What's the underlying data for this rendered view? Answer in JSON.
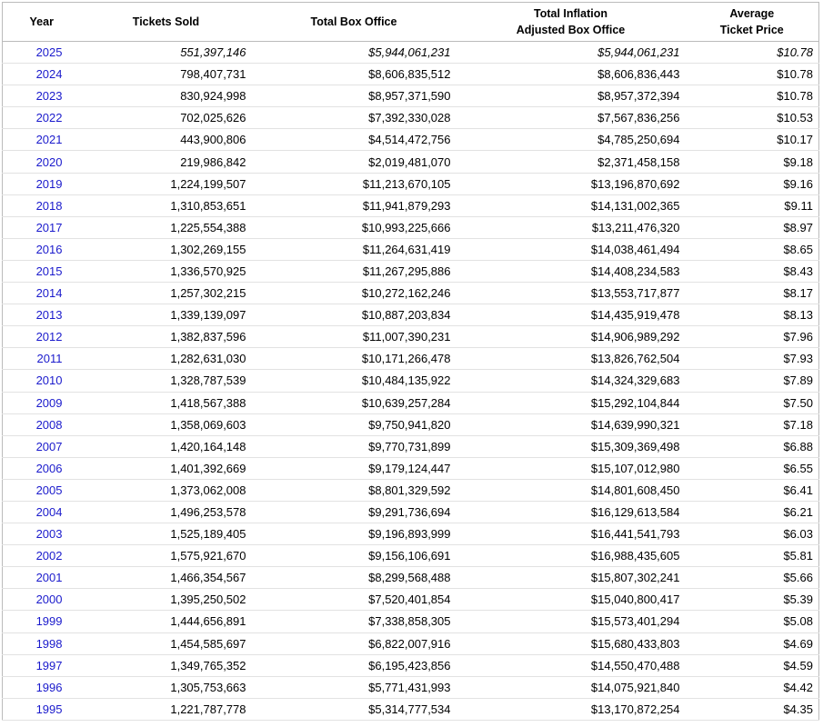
{
  "table": {
    "header": [
      "Year",
      "Tickets Sold",
      "Total Box Office",
      [
        "Total Inflation",
        "Adjusted Box Office"
      ],
      [
        "Average",
        "Ticket Price"
      ]
    ],
    "rows": [
      [
        "2025",
        "551,397,146",
        "$5,944,061,231",
        "$5,944,061,231",
        "$10.78"
      ],
      [
        "2024",
        "798,407,731",
        "$8,606,835,512",
        "$8,606,836,443",
        "$10.78"
      ],
      [
        "2023",
        "830,924,998",
        "$8,957,371,590",
        "$8,957,372,394",
        "$10.78"
      ],
      [
        "2022",
        "702,025,626",
        "$7,392,330,028",
        "$7,567,836,256",
        "$10.53"
      ],
      [
        "2021",
        "443,900,806",
        "$4,514,472,756",
        "$4,785,250,694",
        "$10.17"
      ],
      [
        "2020",
        "219,986,842",
        "$2,019,481,070",
        "$2,371,458,158",
        "$9.18"
      ],
      [
        "2019",
        "1,224,199,507",
        "$11,213,670,105",
        "$13,196,870,692",
        "$9.16"
      ],
      [
        "2018",
        "1,310,853,651",
        "$11,941,879,293",
        "$14,131,002,365",
        "$9.11"
      ],
      [
        "2017",
        "1,225,554,388",
        "$10,993,225,666",
        "$13,211,476,320",
        "$8.97"
      ],
      [
        "2016",
        "1,302,269,155",
        "$11,264,631,419",
        "$14,038,461,494",
        "$8.65"
      ],
      [
        "2015",
        "1,336,570,925",
        "$11,267,295,886",
        "$14,408,234,583",
        "$8.43"
      ],
      [
        "2014",
        "1,257,302,215",
        "$10,272,162,246",
        "$13,553,717,877",
        "$8.17"
      ],
      [
        "2013",
        "1,339,139,097",
        "$10,887,203,834",
        "$14,435,919,478",
        "$8.13"
      ],
      [
        "2012",
        "1,382,837,596",
        "$11,007,390,231",
        "$14,906,989,292",
        "$7.96"
      ],
      [
        "2011",
        "1,282,631,030",
        "$10,171,266,478",
        "$13,826,762,504",
        "$7.93"
      ],
      [
        "2010",
        "1,328,787,539",
        "$10,484,135,922",
        "$14,324,329,683",
        "$7.89"
      ],
      [
        "2009",
        "1,418,567,388",
        "$10,639,257,284",
        "$15,292,104,844",
        "$7.50"
      ],
      [
        "2008",
        "1,358,069,603",
        "$9,750,941,820",
        "$14,639,990,321",
        "$7.18"
      ],
      [
        "2007",
        "1,420,164,148",
        "$9,770,731,899",
        "$15,309,369,498",
        "$6.88"
      ],
      [
        "2006",
        "1,401,392,669",
        "$9,179,124,447",
        "$15,107,012,980",
        "$6.55"
      ],
      [
        "2005",
        "1,373,062,008",
        "$8,801,329,592",
        "$14,801,608,450",
        "$6.41"
      ],
      [
        "2004",
        "1,496,253,578",
        "$9,291,736,694",
        "$16,129,613,584",
        "$6.21"
      ],
      [
        "2003",
        "1,525,189,405",
        "$9,196,893,999",
        "$16,441,541,793",
        "$6.03"
      ],
      [
        "2002",
        "1,575,921,670",
        "$9,156,106,691",
        "$16,988,435,605",
        "$5.81"
      ],
      [
        "2001",
        "1,466,354,567",
        "$8,299,568,488",
        "$15,807,302,241",
        "$5.66"
      ],
      [
        "2000",
        "1,395,250,502",
        "$7,520,401,854",
        "$15,040,800,417",
        "$5.39"
      ],
      [
        "1999",
        "1,444,656,891",
        "$7,338,858,305",
        "$15,573,401,294",
        "$5.08"
      ],
      [
        "1998",
        "1,454,585,697",
        "$6,822,007,916",
        "$15,680,433,803",
        "$4.69"
      ],
      [
        "1997",
        "1,349,765,352",
        "$6,195,423,856",
        "$14,550,470,488",
        "$4.59"
      ],
      [
        "1996",
        "1,305,753,663",
        "$5,771,431,993",
        "$14,075,921,840",
        "$4.42"
      ],
      [
        "1995",
        "1,221,787,778",
        "$5,314,777,534",
        "$13,170,872,254",
        "$4.35"
      ]
    ]
  }
}
